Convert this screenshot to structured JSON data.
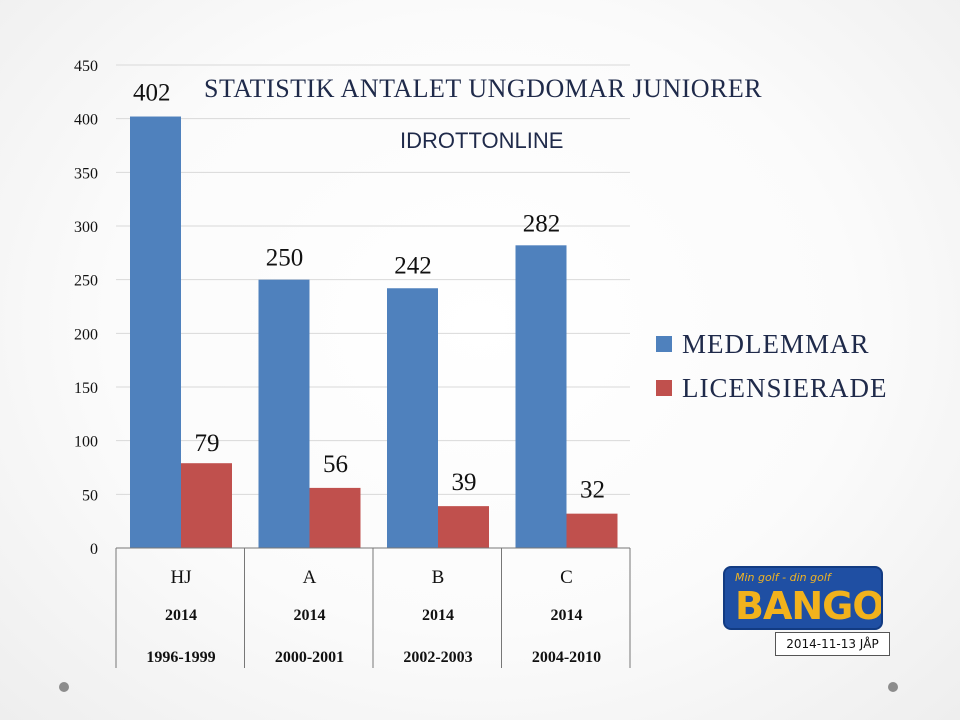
{
  "chart_data": {
    "type": "bar",
    "title": "STATISTIK ANTALET UNGDOMAR JUNIORER",
    "subtitle": "IDROTTONLINE",
    "categories": [
      "HJ",
      "A",
      "B",
      "C"
    ],
    "category_years": [
      "2014",
      "2014",
      "2014",
      "2014"
    ],
    "category_ranges": [
      "1996-1999",
      "2000-2001",
      "2002-2003",
      "2004-2010"
    ],
    "series": [
      {
        "name": "MEDLEMMAR",
        "color": "#4f81bd",
        "values": [
          402,
          250,
          242,
          282
        ]
      },
      {
        "name": "LICENSIERADE",
        "color": "#c0504d",
        "values": [
          79,
          56,
          39,
          32
        ]
      }
    ],
    "ylim": [
      0,
      450
    ],
    "yticks": [
      0,
      50,
      100,
      150,
      200,
      250,
      300,
      350,
      400,
      450
    ],
    "grid": true,
    "legend_position": "right"
  },
  "logo": {
    "tagline": "Min golf - din golf",
    "wordmark": "BANGOLF"
  },
  "footer_stamp": "2014-11-13 JÅP"
}
